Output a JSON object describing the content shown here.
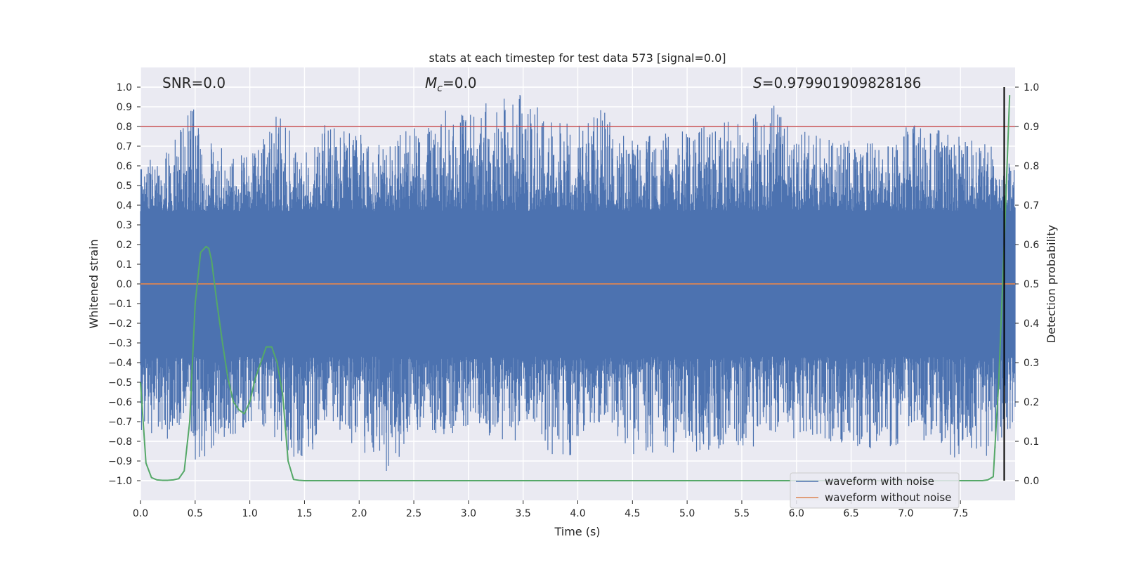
{
  "chart_data": {
    "type": "line",
    "title": "stats at each timestep for test data 573 [signal=0.0]",
    "xlabel": "Time (s)",
    "ylabel": "Whitened strain",
    "y2label": "Detection probability",
    "xlim": [
      0.0,
      8.0
    ],
    "ylim": [
      -1.1,
      1.1
    ],
    "y2lim": [
      -0.05,
      1.05
    ],
    "xticks": [
      0.0,
      0.5,
      1.0,
      1.5,
      2.0,
      2.5,
      3.0,
      3.5,
      4.0,
      4.5,
      5.0,
      5.5,
      6.0,
      6.5,
      7.0,
      7.5
    ],
    "yticks": [
      -1.0,
      -0.9,
      -0.8,
      -0.7,
      -0.6,
      -0.5,
      -0.4,
      -0.3,
      -0.2,
      -0.1,
      0.0,
      0.1,
      0.2,
      0.3,
      0.4,
      0.5,
      0.6,
      0.7,
      0.8,
      0.9,
      1.0
    ],
    "y2ticks": [
      0.0,
      0.1,
      0.2,
      0.3,
      0.4,
      0.5,
      0.6,
      0.7,
      0.8,
      0.9,
      1.0
    ],
    "annotations": {
      "snr": "SNR=0.0",
      "mc_symbol": "M",
      "mc_sub": "c",
      "mc_value": "=0.0",
      "s_symbol": "S",
      "s_value": "=0.979901909828186"
    },
    "threshold_line": {
      "y2": 0.9,
      "color": "#c44e52"
    },
    "marker_line": {
      "x": 7.9,
      "y2_range": [
        0.0,
        1.0
      ],
      "color": "#000000"
    },
    "series": [
      {
        "name": "waveform with noise",
        "axis": "left",
        "color": "#4c72b0",
        "x_range": [
          0.0,
          8.0
        ],
        "core_abs_amplitude": 0.37,
        "peak_envelope": [
          {
            "t": 0.0,
            "pos": 0.6,
            "neg": -0.75
          },
          {
            "t": 0.3,
            "pos": 0.75,
            "neg": -0.8
          },
          {
            "t": 0.42,
            "pos": 0.97,
            "neg": -0.65
          },
          {
            "t": 0.5,
            "pos": 0.92,
            "neg": -0.9
          },
          {
            "t": 0.55,
            "pos": 0.7,
            "neg": -0.94
          },
          {
            "t": 0.66,
            "pos": 0.72,
            "neg": -0.88
          },
          {
            "t": 1.0,
            "pos": 0.65,
            "neg": -0.7
          },
          {
            "t": 1.27,
            "pos": 0.88,
            "neg": -0.8
          },
          {
            "t": 1.5,
            "pos": 0.65,
            "neg": -0.99
          },
          {
            "t": 1.65,
            "pos": 0.84,
            "neg": -0.7
          },
          {
            "t": 2.27,
            "pos": 0.7,
            "neg": -0.98
          },
          {
            "t": 2.5,
            "pos": 0.85,
            "neg": -0.75
          },
          {
            "t": 3.5,
            "pos": 0.98,
            "neg": -0.8
          },
          {
            "t": 3.9,
            "pos": 0.82,
            "neg": -0.9
          },
          {
            "t": 4.25,
            "pos": 0.9,
            "neg": -0.7
          },
          {
            "t": 4.5,
            "pos": 0.75,
            "neg": -0.88
          },
          {
            "t": 5.6,
            "pos": 0.85,
            "neg": -0.83
          },
          {
            "t": 5.77,
            "pos": 0.94,
            "neg": -0.75
          },
          {
            "t": 6.0,
            "pos": 0.78,
            "neg": -0.8
          },
          {
            "t": 6.9,
            "pos": 0.7,
            "neg": -0.85
          },
          {
            "t": 7.0,
            "pos": 0.83,
            "neg": -0.75
          },
          {
            "t": 7.5,
            "pos": 0.75,
            "neg": -0.9
          },
          {
            "t": 7.75,
            "pos": 0.72,
            "neg": -0.93
          },
          {
            "t": 8.0,
            "pos": 0.6,
            "neg": -0.7
          }
        ]
      },
      {
        "name": "waveform without noise",
        "axis": "left",
        "color": "#dd8452",
        "x": [
          0.0,
          8.0
        ],
        "y": [
          0.0,
          0.0
        ]
      },
      {
        "name": "detection probability",
        "axis": "right",
        "color": "#55a868",
        "x": [
          0.0,
          0.05,
          0.1,
          0.15,
          0.2,
          0.25,
          0.3,
          0.35,
          0.4,
          0.45,
          0.5,
          0.55,
          0.6,
          0.625,
          0.65,
          0.7,
          0.75,
          0.8,
          0.85,
          0.9,
          0.95,
          1.0,
          1.05,
          1.1,
          1.15,
          1.2,
          1.25,
          1.3,
          1.35,
          1.4,
          1.45,
          1.5,
          1.6,
          2.0,
          3.0,
          4.0,
          5.0,
          6.0,
          7.0,
          7.5,
          7.7,
          7.75,
          7.8,
          7.85,
          7.9,
          7.95
        ],
        "y": [
          0.25,
          0.045,
          0.008,
          0.002,
          0.001,
          0.001,
          0.002,
          0.005,
          0.025,
          0.15,
          0.45,
          0.58,
          0.595,
          0.59,
          0.56,
          0.45,
          0.35,
          0.26,
          0.2,
          0.18,
          0.17,
          0.2,
          0.26,
          0.3,
          0.34,
          0.34,
          0.3,
          0.22,
          0.05,
          0.003,
          0.001,
          0.0,
          0.0,
          0.0,
          0.0,
          0.0,
          0.0,
          0.0,
          0.0,
          0.0,
          0.0,
          0.002,
          0.01,
          0.25,
          0.6,
          0.98
        ]
      }
    ],
    "legend": {
      "position": "lower right",
      "entries": [
        {
          "label": "waveform with noise",
          "color": "#4c72b0"
        },
        {
          "label": "waveform without noise",
          "color": "#dd8452"
        }
      ]
    },
    "background": "#eaeaf2",
    "grid": true
  }
}
